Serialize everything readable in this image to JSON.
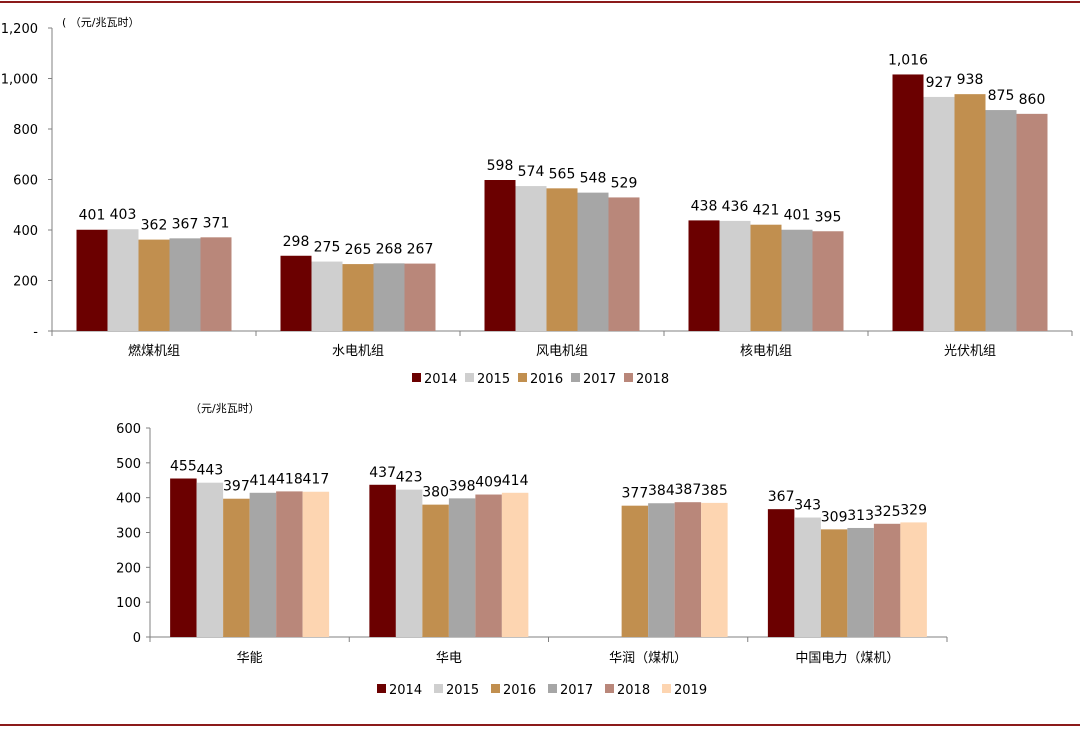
{
  "chart_data": [
    {
      "type": "bar",
      "unit_label": "( （元/兆瓦时）",
      "categories": [
        "燃煤机组",
        "水电机组",
        "风电机组",
        "核电机组",
        "光伏机组"
      ],
      "series": [
        {
          "name": "2014",
          "color": "#6b0000",
          "values": [
            401,
            298,
            598,
            438,
            1016
          ]
        },
        {
          "name": "2015",
          "color": "#cfcfcf",
          "values": [
            403,
            275,
            574,
            436,
            927
          ]
        },
        {
          "name": "2016",
          "color": "#c18f4f",
          "values": [
            362,
            265,
            565,
            421,
            938
          ]
        },
        {
          "name": "2017",
          "color": "#a6a6a6",
          "values": [
            367,
            268,
            548,
            401,
            875
          ]
        },
        {
          "name": "2018",
          "color": "#b9877a",
          "values": [
            371,
            267,
            529,
            395,
            860
          ]
        }
      ],
      "value_labels": [
        [
          "401",
          "298",
          "598",
          "438",
          "1,016"
        ],
        [
          "403",
          "275",
          "574",
          "436",
          "927"
        ],
        [
          "362",
          "265",
          "565",
          "421",
          "938"
        ],
        [
          "367",
          "268",
          "548",
          "401",
          "875"
        ],
        [
          "371",
          "267",
          "529",
          "395",
          "860"
        ]
      ],
      "yticks": [
        {
          "v": 0,
          "label": "-"
        },
        {
          "v": 200,
          "label": "200"
        },
        {
          "v": 400,
          "label": "400"
        },
        {
          "v": 600,
          "label": "600"
        },
        {
          "v": 800,
          "label": "800"
        },
        {
          "v": 1000,
          "label": "1,000"
        },
        {
          "v": 1200,
          "label": "1,200"
        }
      ],
      "ylim": [
        0,
        1200
      ],
      "legend_position": "bottom"
    },
    {
      "type": "bar",
      "unit_label": "（元/兆瓦时）",
      "categories": [
        "华能",
        "华电",
        "华润（煤机）",
        "中国电力（煤机）"
      ],
      "series": [
        {
          "name": "2014",
          "color": "#6b0000",
          "values": [
            455,
            437,
            null,
            367
          ]
        },
        {
          "name": "2015",
          "color": "#cfcfcf",
          "values": [
            443,
            423,
            null,
            343
          ]
        },
        {
          "name": "2016",
          "color": "#c18f4f",
          "values": [
            397,
            380,
            377,
            309
          ]
        },
        {
          "name": "2017",
          "color": "#a6a6a6",
          "values": [
            414,
            398,
            384,
            313
          ]
        },
        {
          "name": "2018",
          "color": "#b9877a",
          "values": [
            418,
            409,
            387,
            325
          ]
        },
        {
          "name": "2019",
          "color": "#fdd5b1",
          "values": [
            417,
            414,
            385,
            329
          ]
        }
      ],
      "yticks": [
        {
          "v": 0,
          "label": "0"
        },
        {
          "v": 100,
          "label": "100"
        },
        {
          "v": 200,
          "label": "200"
        },
        {
          "v": 300,
          "label": "300"
        },
        {
          "v": 400,
          "label": "400"
        },
        {
          "v": 500,
          "label": "500"
        },
        {
          "v": 600,
          "label": "600"
        }
      ],
      "ylim": [
        0,
        600
      ],
      "legend_position": "bottom"
    }
  ]
}
